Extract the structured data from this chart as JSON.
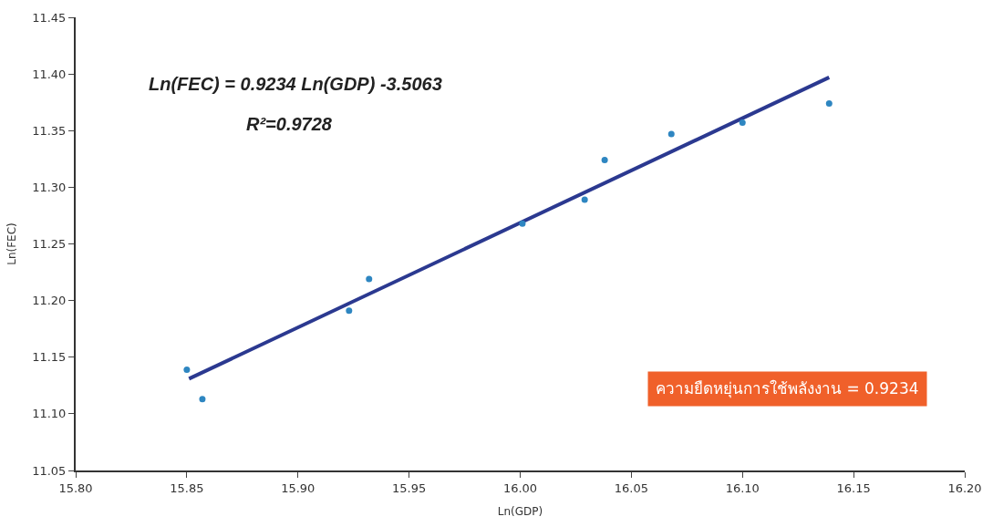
{
  "chart_data": {
    "type": "scatter",
    "xlabel": "Ln(GDP)",
    "ylabel": "Ln(FEC)",
    "series": [
      {
        "color": "#2e86c1",
        "x": [
          15.85,
          15.857,
          15.923,
          15.932,
          16.001,
          16.029,
          16.038,
          16.068,
          16.1,
          16.139
        ],
        "values": [
          11.139,
          11.113,
          11.191,
          11.219,
          11.268,
          11.289,
          11.324,
          11.347,
          11.357,
          11.374
        ]
      },
      {
        "type": "line",
        "marker": "none",
        "color": "#2b3990",
        "x": [
          15.851,
          16.139
        ],
        "values": [
          11.131,
          11.397
        ]
      }
    ],
    "xlim": [
      15.8,
      16.2
    ],
    "xticks": [
      {
        "value": 15.8,
        "label": "15.80"
      },
      {
        "value": 15.85,
        "label": "15.85"
      },
      {
        "value": 15.9,
        "label": "15.90"
      },
      {
        "value": 15.95,
        "label": "15.95"
      },
      {
        "value": 16.0,
        "label": "16.00"
      },
      {
        "value": 16.05,
        "label": "16.05"
      },
      {
        "value": 16.1,
        "label": "16.10"
      },
      {
        "value": 16.15,
        "label": "16.15"
      },
      {
        "value": 16.2,
        "label": "16.20"
      }
    ],
    "ylim": [
      11.05,
      11.45
    ],
    "yticks": [
      {
        "value": 11.05,
        "label": "11.05"
      },
      {
        "value": 11.1,
        "label": "11.10"
      },
      {
        "value": 11.15,
        "label": "11.15"
      },
      {
        "value": 11.2,
        "label": "11.20"
      },
      {
        "value": 11.25,
        "label": "11.25"
      },
      {
        "value": 11.3,
        "label": "11.30"
      },
      {
        "value": 11.35,
        "label": "11.35"
      },
      {
        "value": 11.4,
        "label": "11.40"
      },
      {
        "value": 11.45,
        "label": "11.45"
      }
    ],
    "annotations": [
      "Ln(FEC) = 0.9234 Ln(GDP) -3.5063",
      "R²=0.9728",
      "ความยืดหยุ่นการใช้พลังงาน = 0.9234"
    ],
    "marker": "circle"
  }
}
